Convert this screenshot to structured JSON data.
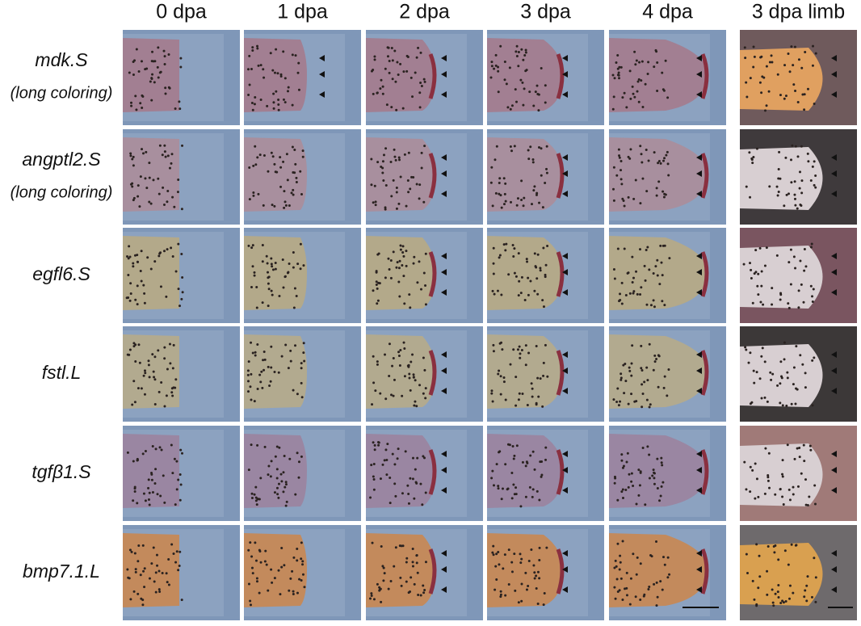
{
  "columns": [
    "0 dpa",
    "1 dpa",
    "2 dpa",
    "3 dpa",
    "4 dpa",
    "3 dpa limb"
  ],
  "rows": [
    {
      "gene": "mdk.S",
      "note": "(long coloring)"
    },
    {
      "gene": "angptl2.S",
      "note": "(long coloring)"
    },
    {
      "gene": "egfl6.S"
    },
    {
      "gene": "fstl.L"
    },
    {
      "gene": "tgfβ1.S"
    },
    {
      "gene": "bmp7.1.L"
    }
  ]
}
